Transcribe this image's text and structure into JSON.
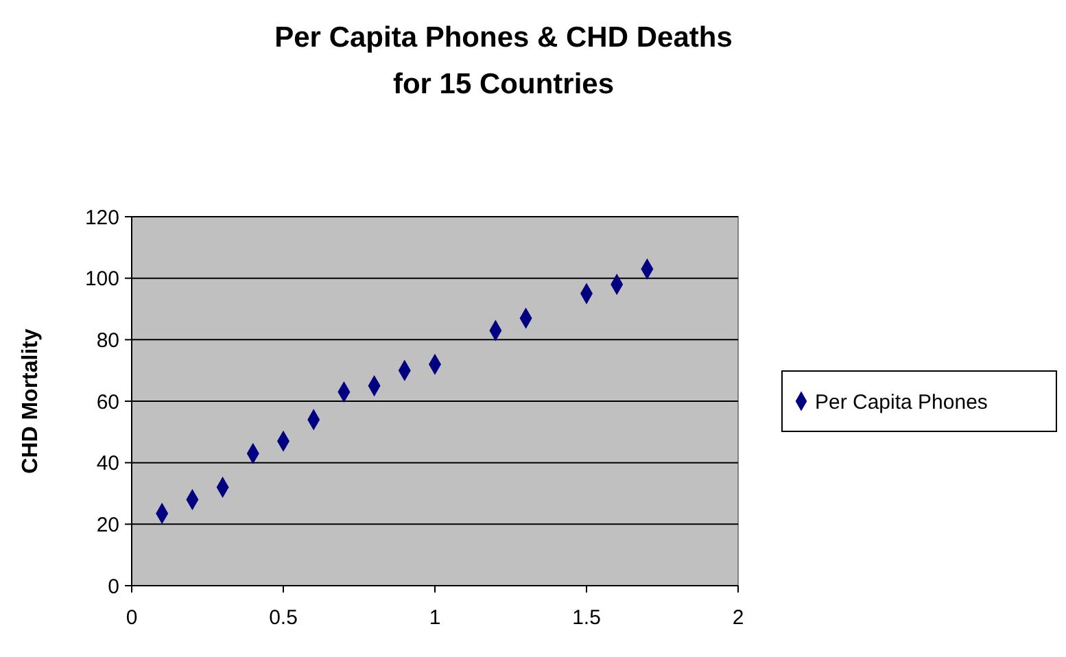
{
  "chart_data": {
    "type": "scatter",
    "title": "Per Capita Phones & CHD Deaths\nfor 15 Countries",
    "ylabel": "CHD Mortality",
    "x": [
      0.1,
      0.2,
      0.3,
      0.4,
      0.5,
      0.6,
      0.7,
      0.8,
      0.9,
      1.0,
      1.2,
      1.3,
      1.5,
      1.6,
      1.7
    ],
    "series": [
      {
        "name": "Per Capita Phones",
        "color": "#000080",
        "values": [
          23.5,
          28,
          32,
          43,
          47,
          54,
          63,
          65,
          70,
          72,
          83,
          87,
          95,
          98,
          103
        ]
      }
    ],
    "xlim": [
      0,
      2
    ],
    "xticks": [
      0,
      0.5,
      1,
      1.5,
      2
    ],
    "ylim": [
      0,
      120
    ],
    "yticks": [
      0,
      20,
      40,
      60,
      80,
      100,
      120
    ],
    "grid": "y",
    "legend": "right",
    "marker": "diamond"
  }
}
